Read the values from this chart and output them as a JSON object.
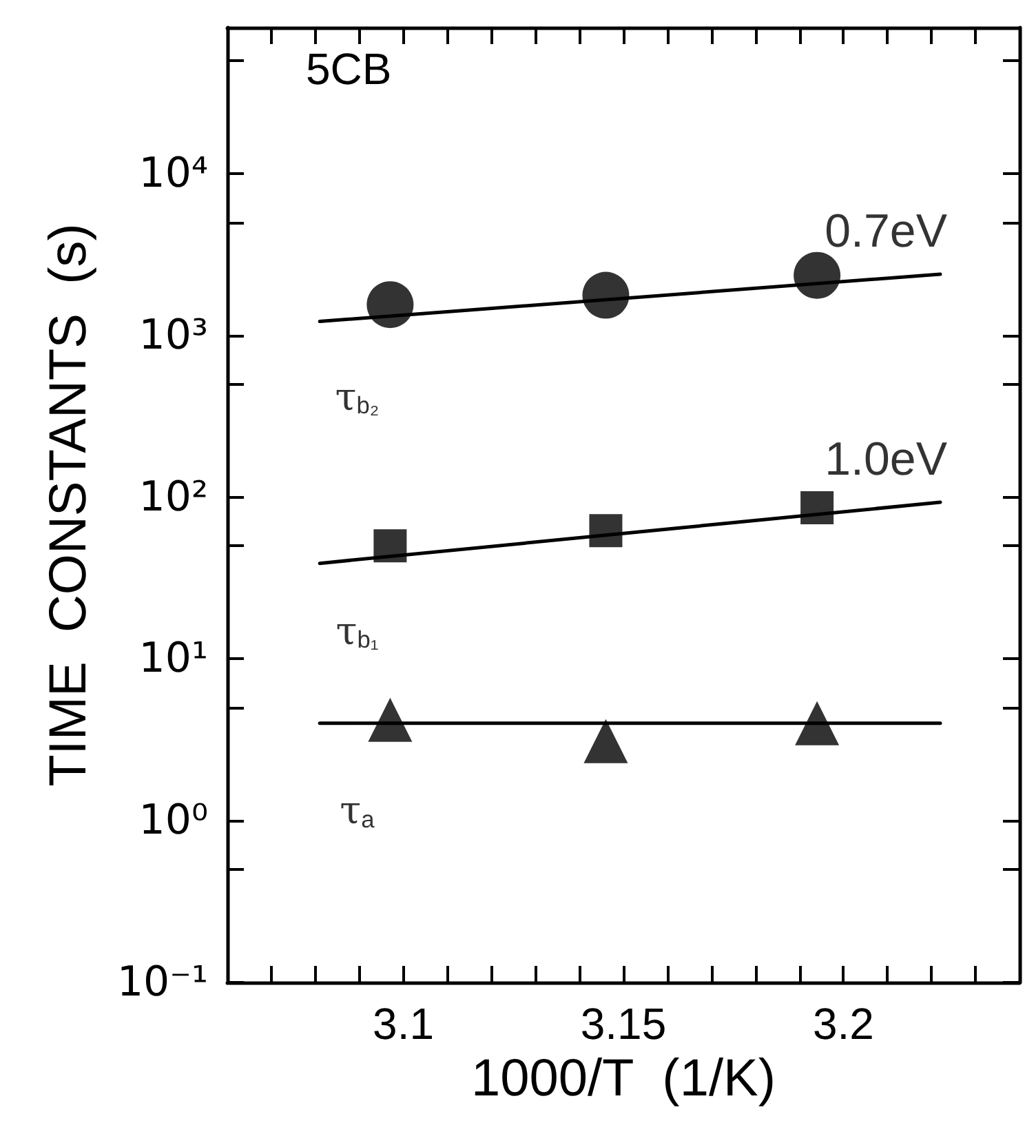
{
  "chart_data": {
    "type": "scatter",
    "xlabel": "1000/T  (1/K)",
    "ylabel": "TIME  CONSTANTS  (s)",
    "log": "y",
    "grid": false,
    "xlim": [
      3.06,
      3.24
    ],
    "xticks": [
      {
        "value": 3.07,
        "label": null
      },
      {
        "value": 3.08,
        "label": null
      },
      {
        "value": 3.09,
        "label": null
      },
      3.1,
      {
        "value": 3.11,
        "label": null
      },
      {
        "value": 3.12,
        "label": null
      },
      {
        "value": 3.13,
        "label": null
      },
      {
        "value": 3.14,
        "label": null
      },
      3.15,
      {
        "value": 3.16,
        "label": null
      },
      {
        "value": 3.17,
        "label": null
      },
      {
        "value": 3.18,
        "label": null
      },
      {
        "value": 3.19,
        "label": null
      },
      3.2,
      {
        "value": 3.21,
        "label": null
      },
      {
        "value": 3.22,
        "label": null
      },
      {
        "value": 3.23,
        "label": null
      }
    ],
    "ylim": [
      0.1,
      80000
    ],
    "yticks": [
      {
        "value": 0.1,
        "label": "10⁻¹"
      },
      {
        "value": 0.5,
        "label": null
      },
      {
        "value": 1,
        "label": "10⁰"
      },
      {
        "value": 5,
        "label": null
      },
      {
        "value": 10,
        "label": "10¹"
      },
      {
        "value": 50,
        "label": null
      },
      {
        "value": 100,
        "label": "10²"
      },
      {
        "value": 500,
        "label": null
      },
      {
        "value": 1000,
        "label": "10³"
      },
      {
        "value": 5000,
        "label": null
      },
      {
        "value": 10000,
        "label": "10⁴"
      },
      {
        "value": 50000,
        "label": null
      }
    ],
    "annotations": [
      "5CB",
      {
        "text": "0.7eV",
        "x": 3.222,
        "y": 2390
      },
      {
        "text": "1.0eV",
        "x": 3.222,
        "y": 93
      }
    ],
    "series": [
      {
        "name": "τ$_{b₂}$",
        "type": "scatter",
        "marker": "circle",
        "color": "#000000",
        "x": [
          3.097,
          3.146,
          3.194
        ],
        "values": [
          1550,
          1770,
          2350
        ]
      },
      {
        "name": "τ$_{b₁}$",
        "type": "scatter",
        "marker": "square",
        "color": "#000000",
        "x": [
          3.097,
          3.146,
          3.194
        ],
        "values": [
          50,
          62,
          86
        ]
      },
      {
        "name": "τ$_{a}$",
        "type": "scatter",
        "marker": "triangle",
        "color": "#000000",
        "x": [
          3.097,
          3.146,
          3.194
        ],
        "values": [
          4.2,
          3.1,
          4.0
        ]
      },
      {
        "type": "line",
        "marker": "none",
        "line_style": "solid",
        "color": "#000000",
        "x": [
          3.081,
          3.222
        ],
        "values": [
          1220,
          2390
        ]
      },
      {
        "type": "line",
        "marker": "none",
        "line_style": "solid",
        "color": "#000000",
        "x": [
          3.081,
          3.222
        ],
        "values": [
          39,
          93
        ]
      },
      {
        "type": "line",
        "marker": "none",
        "line_style": "solid",
        "color": "#000000",
        "x": [
          3.081,
          3.222
        ],
        "values": [
          4.0,
          4.0
        ]
      }
    ]
  }
}
